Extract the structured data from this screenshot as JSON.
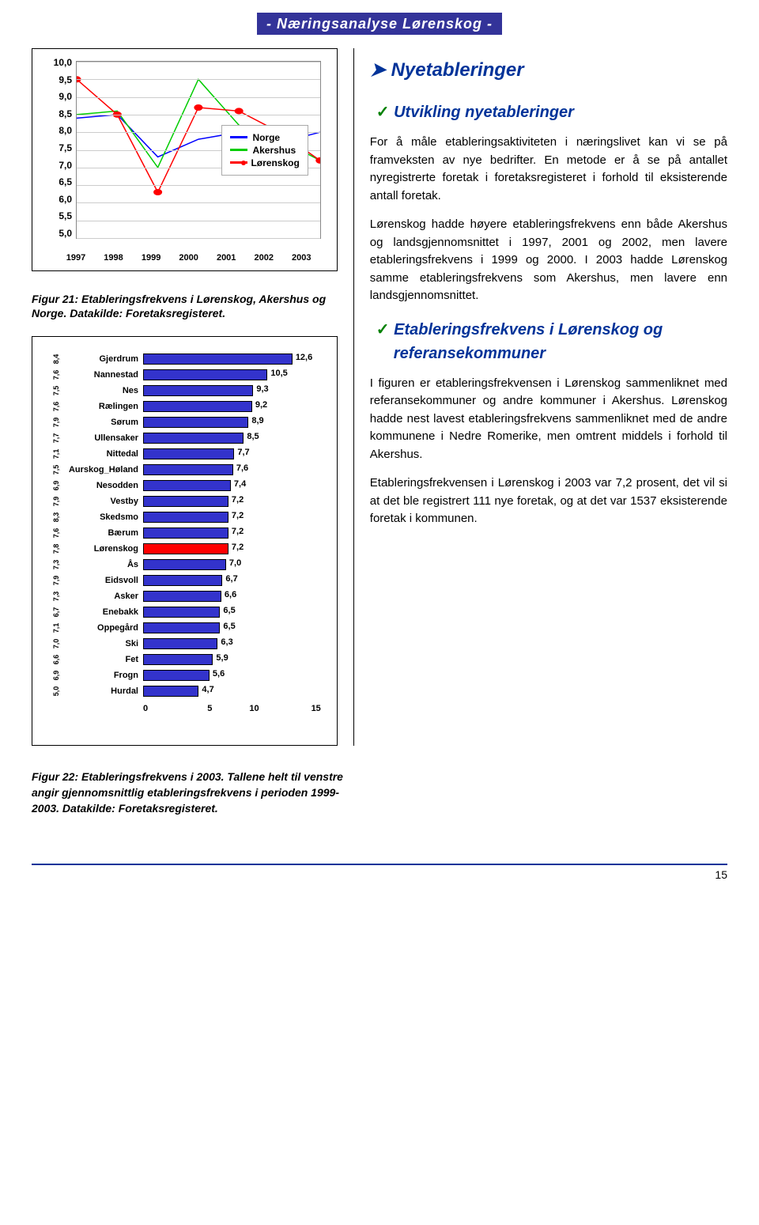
{
  "header": {
    "title": "- Næringsanalyse Lørenskog -"
  },
  "line_chart": {
    "type": "line",
    "ylim": [
      5.0,
      10.0
    ],
    "ytick_step": 0.5,
    "yticks": [
      "10,0",
      "9,5",
      "9,0",
      "8,5",
      "8,0",
      "7,5",
      "7,0",
      "6,5",
      "6,0",
      "5,5",
      "5,0"
    ],
    "x_categories": [
      "1997",
      "1998",
      "1999",
      "2000",
      "2001",
      "2002",
      "2003"
    ],
    "background_color": "#ffffff",
    "grid_color": "#cccccc",
    "series": [
      {
        "name": "Norge",
        "color": "#0000ff",
        "marker": "none",
        "values": [
          8.4,
          8.5,
          7.3,
          7.8,
          8.0,
          7.7,
          8.0
        ]
      },
      {
        "name": "Akershus",
        "color": "#00cc00",
        "marker": "none",
        "values": [
          8.5,
          8.6,
          7.0,
          9.5,
          8.2,
          7.8,
          7.2
        ]
      },
      {
        "name": "Lørenskog",
        "color": "#ff0000",
        "marker": "circle",
        "values": [
          9.5,
          8.5,
          6.3,
          8.7,
          8.6,
          8.0,
          7.2
        ]
      }
    ],
    "legend": [
      "Norge",
      "Akershus",
      "Lørenskog"
    ]
  },
  "caption1": "Figur 21: Etableringsfrekvens i Lørenskog, Akershus og Norge. Datakilde: Foretaksregisteret.",
  "bar_chart": {
    "type": "bar-horizontal",
    "xlim": [
      0,
      15
    ],
    "xticks": [
      "0",
      "5",
      "10",
      "15"
    ],
    "default_bar_color": "#3333cc",
    "highlight_bar_color": "#ff0000",
    "border_color": "#000000",
    "label_fontsize": 11,
    "rows": [
      {
        "avg": "8,4",
        "name": "Gjerdrum",
        "value": 12.6,
        "label": "12,6"
      },
      {
        "avg": "7,6",
        "name": "Nannestad",
        "value": 10.5,
        "label": "10,5"
      },
      {
        "avg": "7,5",
        "name": "Nes",
        "value": 9.3,
        "label": "9,3"
      },
      {
        "avg": "7,6",
        "name": "Rælingen",
        "value": 9.2,
        "label": "9,2"
      },
      {
        "avg": "7,9",
        "name": "Sørum",
        "value": 8.9,
        "label": "8,9"
      },
      {
        "avg": "7,7",
        "name": "Ullensaker",
        "value": 8.5,
        "label": "8,5"
      },
      {
        "avg": "7,1",
        "name": "Nittedal",
        "value": 7.7,
        "label": "7,7"
      },
      {
        "avg": "7,5",
        "name": "Aurskog_Høland",
        "value": 7.6,
        "label": "7,6"
      },
      {
        "avg": "6,9",
        "name": "Nesodden",
        "value": 7.4,
        "label": "7,4"
      },
      {
        "avg": "7,9",
        "name": "Vestby",
        "value": 7.2,
        "label": "7,2"
      },
      {
        "avg": "8,3",
        "name": "Skedsmo",
        "value": 7.2,
        "label": "7,2"
      },
      {
        "avg": "7,6",
        "name": "Bærum",
        "value": 7.2,
        "label": "7,2"
      },
      {
        "avg": "7,8",
        "name": "Lørenskog",
        "value": 7.2,
        "label": "7,2",
        "highlight": true
      },
      {
        "avg": "7,3",
        "name": "Ås",
        "value": 7.0,
        "label": "7,0"
      },
      {
        "avg": "7,9",
        "name": "Eidsvoll",
        "value": 6.7,
        "label": "6,7"
      },
      {
        "avg": "7,3",
        "name": "Asker",
        "value": 6.6,
        "label": "6,6"
      },
      {
        "avg": "6,7",
        "name": "Enebakk",
        "value": 6.5,
        "label": "6,5"
      },
      {
        "avg": "7,1",
        "name": "Oppegård",
        "value": 6.5,
        "label": "6,5"
      },
      {
        "avg": "7,0",
        "name": "Ski",
        "value": 6.3,
        "label": "6,3"
      },
      {
        "avg": "6,6",
        "name": "Fet",
        "value": 5.9,
        "label": "5,9"
      },
      {
        "avg": "6,9",
        "name": "Frogn",
        "value": 5.6,
        "label": "5,6"
      },
      {
        "avg": "5,0",
        "name": "Hurdal",
        "value": 4.7,
        "label": "4,7"
      }
    ]
  },
  "caption2": "Figur 22: Etableringsfrekvens i 2003. Tallene helt til venstre angir gjennomsnittlig etableringsfrekvens i perioden 1999-2003. Datakilde: Foretaksregisteret.",
  "right": {
    "h1": "Nyetableringer",
    "h2a": "Utvikling nyetableringer",
    "p1": "For å måle etableringsaktiviteten i næringslivet kan vi se på framveksten av nye bedrifter. En metode er å se på antallet nyregistrerte foretak i foretaksregisteret i forhold til eksisterende antall foretak.",
    "p2": "Lørenskog hadde høyere etableringsfrekvens enn både Akershus og landsgjennomsnittet i 1997, 2001 og 2002, men lavere etableringsfrekvens i 1999 og 2000. I 2003 hadde Lørenskog samme etableringsfrekvens som Akershus, men lavere enn landsgjennomsnittet.",
    "h2b": "Etableringsfrekvens i Lørenskog og referansekommuner",
    "p3": "I figuren er etableringsfrekvensen i Lørenskog sammenliknet med referansekommuner og andre kommuner i Akershus. Lørenskog hadde nest lavest etableringsfrekvens sammenliknet med de andre kommunene i Nedre Romerike, men omtrent middels i forhold til Akershus.",
    "p4": "Etableringsfrekvensen i Lørenskog i 2003 var 7,2 prosent, det vil si at det ble registrert 111 nye foretak, og at det var 1537 eksisterende foretak i kommunen."
  },
  "page_number": "15"
}
